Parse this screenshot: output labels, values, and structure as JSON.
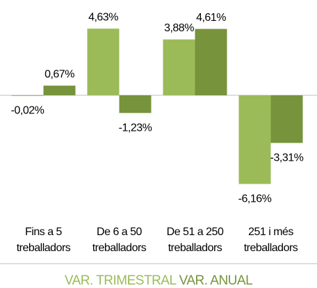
{
  "chart_data": {
    "type": "bar",
    "categories": [
      [
        "Fins a 5",
        "treballadors"
      ],
      [
        "De 6 a 50",
        "treballadors"
      ],
      [
        "De 51 a 250",
        "treballadors"
      ],
      [
        "251 i més",
        "treballadors"
      ]
    ],
    "series": [
      {
        "name": "VAR. TRIMESTRAL",
        "color": "#9bbb59",
        "values": [
          -0.02,
          4.63,
          3.88,
          -6.16
        ],
        "value_labels": [
          "-0,02%",
          "4,63%",
          "3,88%",
          "-6,16%"
        ]
      },
      {
        "name": "VAR. ANUAL",
        "color": "#77933c",
        "values": [
          0.67,
          -1.23,
          4.61,
          -3.31
        ],
        "value_labels": [
          "0,67%",
          "-1,23%",
          "4,61%",
          "-3,31%"
        ]
      }
    ],
    "ylim": [
      -6.5,
      5
    ],
    "legend": "bottom"
  }
}
